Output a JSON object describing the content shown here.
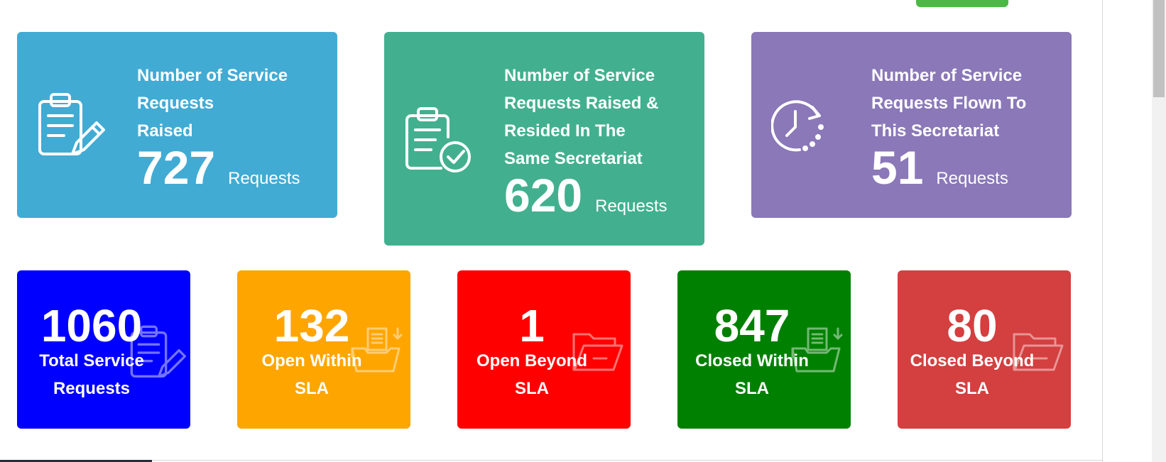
{
  "colors": {
    "card_raised": "#41abd4",
    "card_resided": "#42b08e",
    "card_flown": "#8a78b8",
    "total": "#0000ff",
    "open_within": "#ffa500",
    "open_beyond": "#ff0000",
    "closed_within": "#008000",
    "closed_beyond": "#d43f3f",
    "top_button": "#4cb944"
  },
  "info_cards": [
    {
      "icon": "clipboard-pencil-icon",
      "title_lines": [
        "Number of Service",
        "Requests",
        "Raised"
      ],
      "value": "727",
      "unit": "Requests"
    },
    {
      "icon": "clipboard-check-icon",
      "title_lines": [
        "Number of Service",
        "Requests Raised &",
        "Resided In The",
        "Same Secretariat"
      ],
      "value": "620",
      "unit": "Requests"
    },
    {
      "icon": "clock-refresh-icon",
      "title_lines": [
        "Number of Service",
        "Requests Flown To",
        "This Secretariat"
      ],
      "value": "51",
      "unit": "Requests"
    }
  ],
  "stat_cards": [
    {
      "value": "1060",
      "label_lines": [
        "Total Service",
        "Requests"
      ],
      "icon": "clipboard-pencil-icon"
    },
    {
      "value": "132",
      "label_lines": [
        "Open Within",
        "SLA"
      ],
      "icon": "folder-tray-icon"
    },
    {
      "value": "1",
      "label_lines": [
        "Open Beyond",
        "SLA"
      ],
      "icon": "open-folder-icon"
    },
    {
      "value": "847",
      "label_lines": [
        "Closed Within",
        "SLA"
      ],
      "icon": "folder-tray-icon"
    },
    {
      "value": "80",
      "label_lines": [
        "Closed Beyond",
        "SLA"
      ],
      "icon": "open-folder-icon"
    }
  ]
}
